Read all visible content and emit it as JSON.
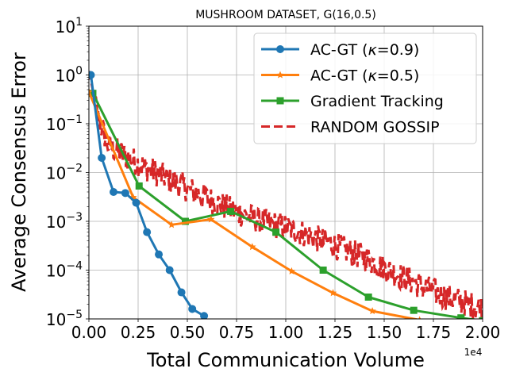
{
  "chart_data": {
    "type": "line",
    "title": "MUSHROOM DATASET, G(16,0.5)",
    "xlabel": "Total Communication Volume",
    "ylabel": "Average Consensus Error",
    "x_offset_label": "1e4",
    "xscale": "linear",
    "yscale": "log",
    "xlim": [
      0,
      20000
    ],
    "ylim": [
      1e-05,
      10
    ],
    "grid": true,
    "legend_position": "upper right",
    "x_ticks": [
      {
        "value": 0,
        "label": "0.00"
      },
      {
        "value": 2500,
        "label": "0.25"
      },
      {
        "value": 5000,
        "label": "0.50"
      },
      {
        "value": 7500,
        "label": "0.75"
      },
      {
        "value": 10000,
        "label": "1.00"
      },
      {
        "value": 12500,
        "label": "1.25"
      },
      {
        "value": 15000,
        "label": "1.50"
      },
      {
        "value": 17500,
        "label": "1.75"
      },
      {
        "value": 20000,
        "label": "2.00"
      }
    ],
    "y_ticks": [
      {
        "value": 1e-05,
        "base": "10",
        "exp": "−5"
      },
      {
        "value": 0.0001,
        "base": "10",
        "exp": "−4"
      },
      {
        "value": 0.001,
        "base": "10",
        "exp": "−3"
      },
      {
        "value": 0.01,
        "base": "10",
        "exp": "−2"
      },
      {
        "value": 0.1,
        "base": "10",
        "exp": "−1"
      },
      {
        "value": 1,
        "base": "10",
        "exp": "0"
      },
      {
        "value": 10,
        "base": "10",
        "exp": "1"
      }
    ],
    "series": [
      {
        "name": "AC-GT (κ=0.9)",
        "legend_prefix": "AC-GT (",
        "legend_kappa": "κ",
        "legend_suffix": "=0.9)",
        "color": "#1f77b4",
        "marker": "circle",
        "style": "solid",
        "x": [
          100,
          650,
          1250,
          1850,
          2400,
          2950,
          3550,
          4100,
          4700,
          5250,
          5850
        ],
        "y": [
          1.0,
          0.02,
          0.004,
          0.0038,
          0.0024,
          0.0006,
          0.00021,
          0.0001,
          3.5e-05,
          1.6e-05,
          1.15e-05
        ]
      },
      {
        "name": "AC-GT (κ=0.5)",
        "legend_prefix": "AC-GT (",
        "legend_kappa": "κ",
        "legend_suffix": "=0.5)",
        "color": "#ff7f0e",
        "marker": "star",
        "style": "solid",
        "x": [
          0,
          2250,
          4200,
          6200,
          8300,
          10300,
          12400,
          14400,
          16800
        ],
        "y": [
          0.45,
          0.0031,
          0.00085,
          0.0011,
          0.0003,
          9.5e-05,
          3.4e-05,
          1.45e-05,
          9.5e-06
        ]
      },
      {
        "name": "Gradient Tracking",
        "color": "#2ca02c",
        "marker": "square",
        "style": "solid",
        "x": [
          200,
          2550,
          4900,
          7200,
          9500,
          11900,
          14200,
          16500,
          18900,
          20000
        ],
        "y": [
          0.42,
          0.0053,
          0.001,
          0.0016,
          0.0006,
          0.0001,
          2.8e-05,
          1.5e-05,
          1.05e-05,
          9.2e-06
        ]
      },
      {
        "name": "RANDOM GOSSIP",
        "color": "#d62728",
        "marker": "none",
        "style": "dashed",
        "noisy": true,
        "x": [
          0,
          500,
          1000,
          2000,
          3000,
          4000,
          5000,
          6000,
          7000,
          8000,
          9000,
          10000,
          11000,
          12000,
          13000,
          14000,
          15000,
          16000,
          17000,
          18000,
          19000,
          20000
        ],
        "y": [
          1.2,
          0.12,
          0.035,
          0.02,
          0.012,
          0.0075,
          0.0047,
          0.003,
          0.0019,
          0.0013,
          0.00095,
          0.00075,
          0.00055,
          0.00038,
          0.00026,
          0.00018,
          0.00011,
          7e-05,
          4.5e-05,
          3e-05,
          2.2e-05,
          1.6e-05
        ]
      }
    ]
  }
}
